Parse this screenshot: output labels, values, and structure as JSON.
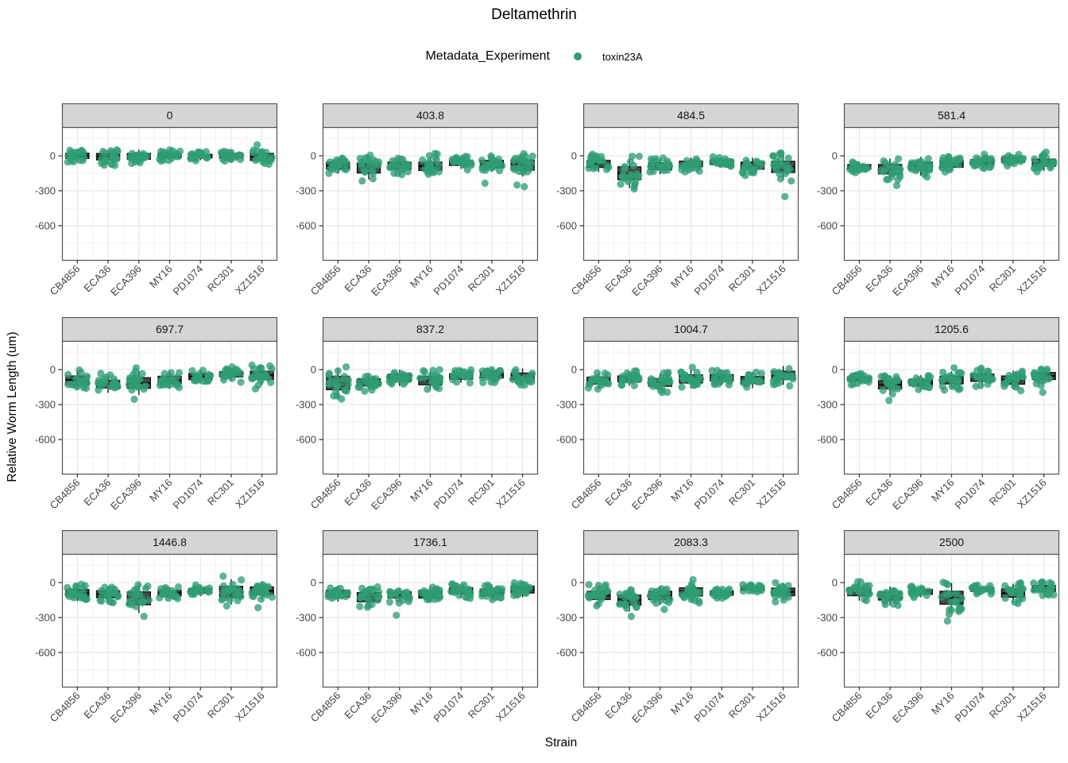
{
  "header": {
    "title": "Deltamethrin"
  },
  "legend": {
    "title": "Metadata_Experiment",
    "items": [
      {
        "label": "toxin23A",
        "color": "#2f9d75"
      }
    ]
  },
  "axes": {
    "x_title": "Strain",
    "y_title": "Relative Worm Length (um)"
  },
  "style": {
    "point_color": "#2f9d75",
    "box_fill": "#4a4a4a",
    "box_stroke": "#141414",
    "strip_bg": "#d5d5d5",
    "panel_border": "#545454",
    "grid_major": "#e3e3e3",
    "grid_minor": "#f1f1f1",
    "axis_text": "#454545"
  },
  "chart_data": {
    "type": "boxplot",
    "overlay": "jitter-points",
    "facet_variable": "dose",
    "facet_layout": {
      "cols": 4,
      "rows": 3
    },
    "categories": [
      "CB4856",
      "ECA36",
      "ECA396",
      "MY16",
      "PD1074",
      "RC301",
      "XZ1516"
    ],
    "series_name": "toxin23A",
    "series_color": "#2f9d75",
    "y_breaks": [
      0,
      -300,
      -600
    ],
    "y_minor_breaks": [
      150,
      -150,
      -450,
      -750
    ],
    "ylim": [
      245,
      -893
    ],
    "points_per_group": 22,
    "grid": true,
    "legend_position": "top",
    "facets": [
      {
        "label": "0",
        "medians": [
          0,
          -8,
          -5,
          0,
          -3,
          0,
          -10
        ],
        "iqrs": [
          45,
          55,
          50,
          35,
          30,
          40,
          60
        ],
        "outliers": [
          [],
          [],
          [],
          [],
          [],
          [],
          [
            95
          ]
        ]
      },
      {
        "label": "403.8",
        "medians": [
          -85,
          -105,
          -85,
          -90,
          -60,
          -70,
          -80
        ],
        "iqrs": [
          60,
          85,
          60,
          70,
          45,
          60,
          85
        ],
        "outliers": [
          [],
          [],
          [],
          [
            20
          ],
          [],
          [
            -235
          ],
          [
            -250,
            -265
          ]
        ]
      },
      {
        "label": "484.5",
        "medians": [
          -70,
          -150,
          -90,
          -70,
          -55,
          -85,
          -95
        ],
        "iqrs": [
          60,
          110,
          60,
          48,
          40,
          60,
          95
        ],
        "outliers": [
          [],
          [
            -285
          ],
          [],
          [],
          [],
          [],
          [
            -350
          ]
        ]
      },
      {
        "label": "581.4",
        "medians": [
          -95,
          -115,
          -90,
          -70,
          -55,
          -35,
          -60
        ],
        "iqrs": [
          38,
          80,
          70,
          55,
          45,
          40,
          60
        ],
        "outliers": [
          [],
          [
            -255
          ],
          [],
          [],
          [],
          [],
          []
        ]
      },
      {
        "label": "697.7",
        "medians": [
          -90,
          -125,
          -115,
          -90,
          -60,
          -40,
          -50
        ],
        "iqrs": [
          70,
          65,
          90,
          65,
          52,
          45,
          70
        ],
        "outliers": [
          [],
          [],
          [
            -255
          ],
          [],
          [],
          [],
          [
            -165
          ]
        ]
      },
      {
        "label": "837.2",
        "medians": [
          -115,
          -110,
          -70,
          -95,
          -60,
          -45,
          -60
        ],
        "iqrs": [
          115,
          60,
          60,
          70,
          45,
          52,
          60
        ],
        "outliers": [
          [],
          [
            -185
          ],
          [],
          [],
          [],
          [],
          []
        ]
      },
      {
        "label": "1004.7",
        "medians": [
          -95,
          -80,
          -110,
          -80,
          -70,
          -90,
          -50
        ],
        "iqrs": [
          60,
          50,
          65,
          70,
          52,
          60,
          70
        ],
        "outliers": [
          [],
          [],
          [
            -180
          ],
          [
            20
          ],
          [],
          [],
          []
        ]
      },
      {
        "label": "1205.6",
        "medians": [
          -80,
          -130,
          -110,
          -90,
          -70,
          -90,
          -55
        ],
        "iqrs": [
          40,
          70,
          55,
          65,
          62,
          70,
          60
        ],
        "outliers": [
          [],
          [
            -265
          ],
          [],
          [
            15
          ],
          [],
          [],
          [
            -195
          ]
        ]
      },
      {
        "label": "1446.8",
        "medians": [
          -90,
          -100,
          -135,
          -90,
          -70,
          -80,
          -70
        ],
        "iqrs": [
          60,
          60,
          110,
          45,
          40,
          95,
          65
        ],
        "outliers": [
          [],
          [],
          [
            -290
          ],
          [],
          [],
          [],
          [
            -215
          ]
        ]
      },
      {
        "label": "1736.1",
        "medians": [
          -95,
          -125,
          -105,
          -100,
          -70,
          -85,
          -60
        ],
        "iqrs": [
          60,
          78,
          52,
          65,
          52,
          60,
          58
        ],
        "outliers": [
          [],
          [],
          [
            -280
          ],
          [],
          [],
          [],
          []
        ]
      },
      {
        "label": "2083.3",
        "medians": [
          -110,
          -150,
          -110,
          -80,
          -90,
          -50,
          -80
        ],
        "iqrs": [
          70,
          85,
          70,
          70,
          36,
          30,
          65
        ],
        "outliers": [
          [],
          [
            -290
          ],
          [
            -230
          ],
          [
            25
          ],
          [],
          [],
          []
        ]
      },
      {
        "label": "2500",
        "medians": [
          -80,
          -115,
          -80,
          -130,
          -60,
          -90,
          -50
        ],
        "iqrs": [
          65,
          70,
          40,
          110,
          30,
          70,
          50
        ],
        "outliers": [
          [],
          [],
          [],
          [
            -330
          ],
          [],
          [],
          []
        ]
      }
    ]
  }
}
